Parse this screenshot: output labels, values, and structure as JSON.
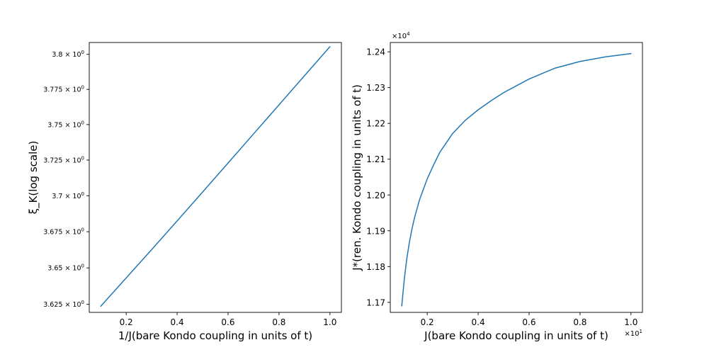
{
  "chart_data": [
    {
      "type": "line",
      "xlabel": "1/J(bare Kondo coupling in units of t)",
      "ylabel": "ξ_K(log scale)",
      "yscale": "log",
      "xlim": [
        0.055,
        1.045
      ],
      "ylim": [
        3.6195,
        3.8085
      ],
      "xticks": [
        0.2,
        0.4,
        0.6,
        0.8,
        1.0
      ],
      "xtick_labels": [
        "0.2",
        "0.4",
        "0.6",
        "0.8",
        "1.0"
      ],
      "yticks": [
        3.625,
        3.65,
        3.675,
        3.7,
        3.725,
        3.75,
        3.775,
        3.8
      ],
      "ytick_labels": [
        {
          "base": "3.625",
          "exp": "0"
        },
        {
          "base": "3.65",
          "exp": "0"
        },
        {
          "base": "3.675",
          "exp": "0"
        },
        {
          "base": "3.7",
          "exp": "0"
        },
        {
          "base": "3.725",
          "exp": "0"
        },
        {
          "base": "3.75",
          "exp": "0"
        },
        {
          "base": "3.775",
          "exp": "0"
        },
        {
          "base": "3.8",
          "exp": "0"
        }
      ],
      "grid": false,
      "color": "#1f77b4",
      "series": [
        {
          "x": [
            0.1,
            0.2,
            0.3,
            0.4,
            0.5,
            0.6,
            0.7,
            0.8,
            0.9,
            1.0
          ],
          "y": [
            3.6237,
            3.6431,
            3.6626,
            3.6825,
            3.7026,
            3.7229,
            3.7434,
            3.764,
            3.7847,
            3.8055
          ]
        }
      ]
    },
    {
      "type": "line",
      "xlabel": "J(bare Kondo coupling in units of t)",
      "ylabel": "J*(ren. Kondo coupling in units of t)",
      "xlim": [
        0.055,
        1.045
      ],
      "ylim": [
        1.1672,
        1.2426
      ],
      "x_multiplier": "×10",
      "x_multiplier_exp": "1",
      "y_multiplier": "×10",
      "y_multiplier_exp": "4",
      "xticks": [
        0.2,
        0.4,
        0.6,
        0.8,
        1.0
      ],
      "xtick_labels": [
        "0.2",
        "0.4",
        "0.6",
        "0.8",
        "1.0"
      ],
      "yticks": [
        1.17,
        1.18,
        1.19,
        1.2,
        1.21,
        1.22,
        1.23,
        1.24
      ],
      "ytick_labels": [
        "1.17",
        "1.18",
        "1.19",
        "1.20",
        "1.21",
        "1.22",
        "1.23",
        "1.24"
      ],
      "grid": false,
      "color": "#1f77b4",
      "series": [
        {
          "x": [
            0.1,
            0.11,
            0.12,
            0.13,
            0.14,
            0.15,
            0.17,
            0.2,
            0.225,
            0.25,
            0.3,
            0.35,
            0.4,
            0.45,
            0.5,
            0.6,
            0.7,
            0.8,
            0.9,
            1.0
          ],
          "y": [
            1.169,
            1.1765,
            1.1823,
            1.1868,
            1.1905,
            1.1936,
            1.1987,
            1.2045,
            1.2084,
            1.212,
            1.2172,
            1.2209,
            1.2238,
            1.2263,
            1.2286,
            1.2324,
            1.2354,
            1.2373,
            1.2386,
            1.2395
          ]
        }
      ]
    }
  ]
}
